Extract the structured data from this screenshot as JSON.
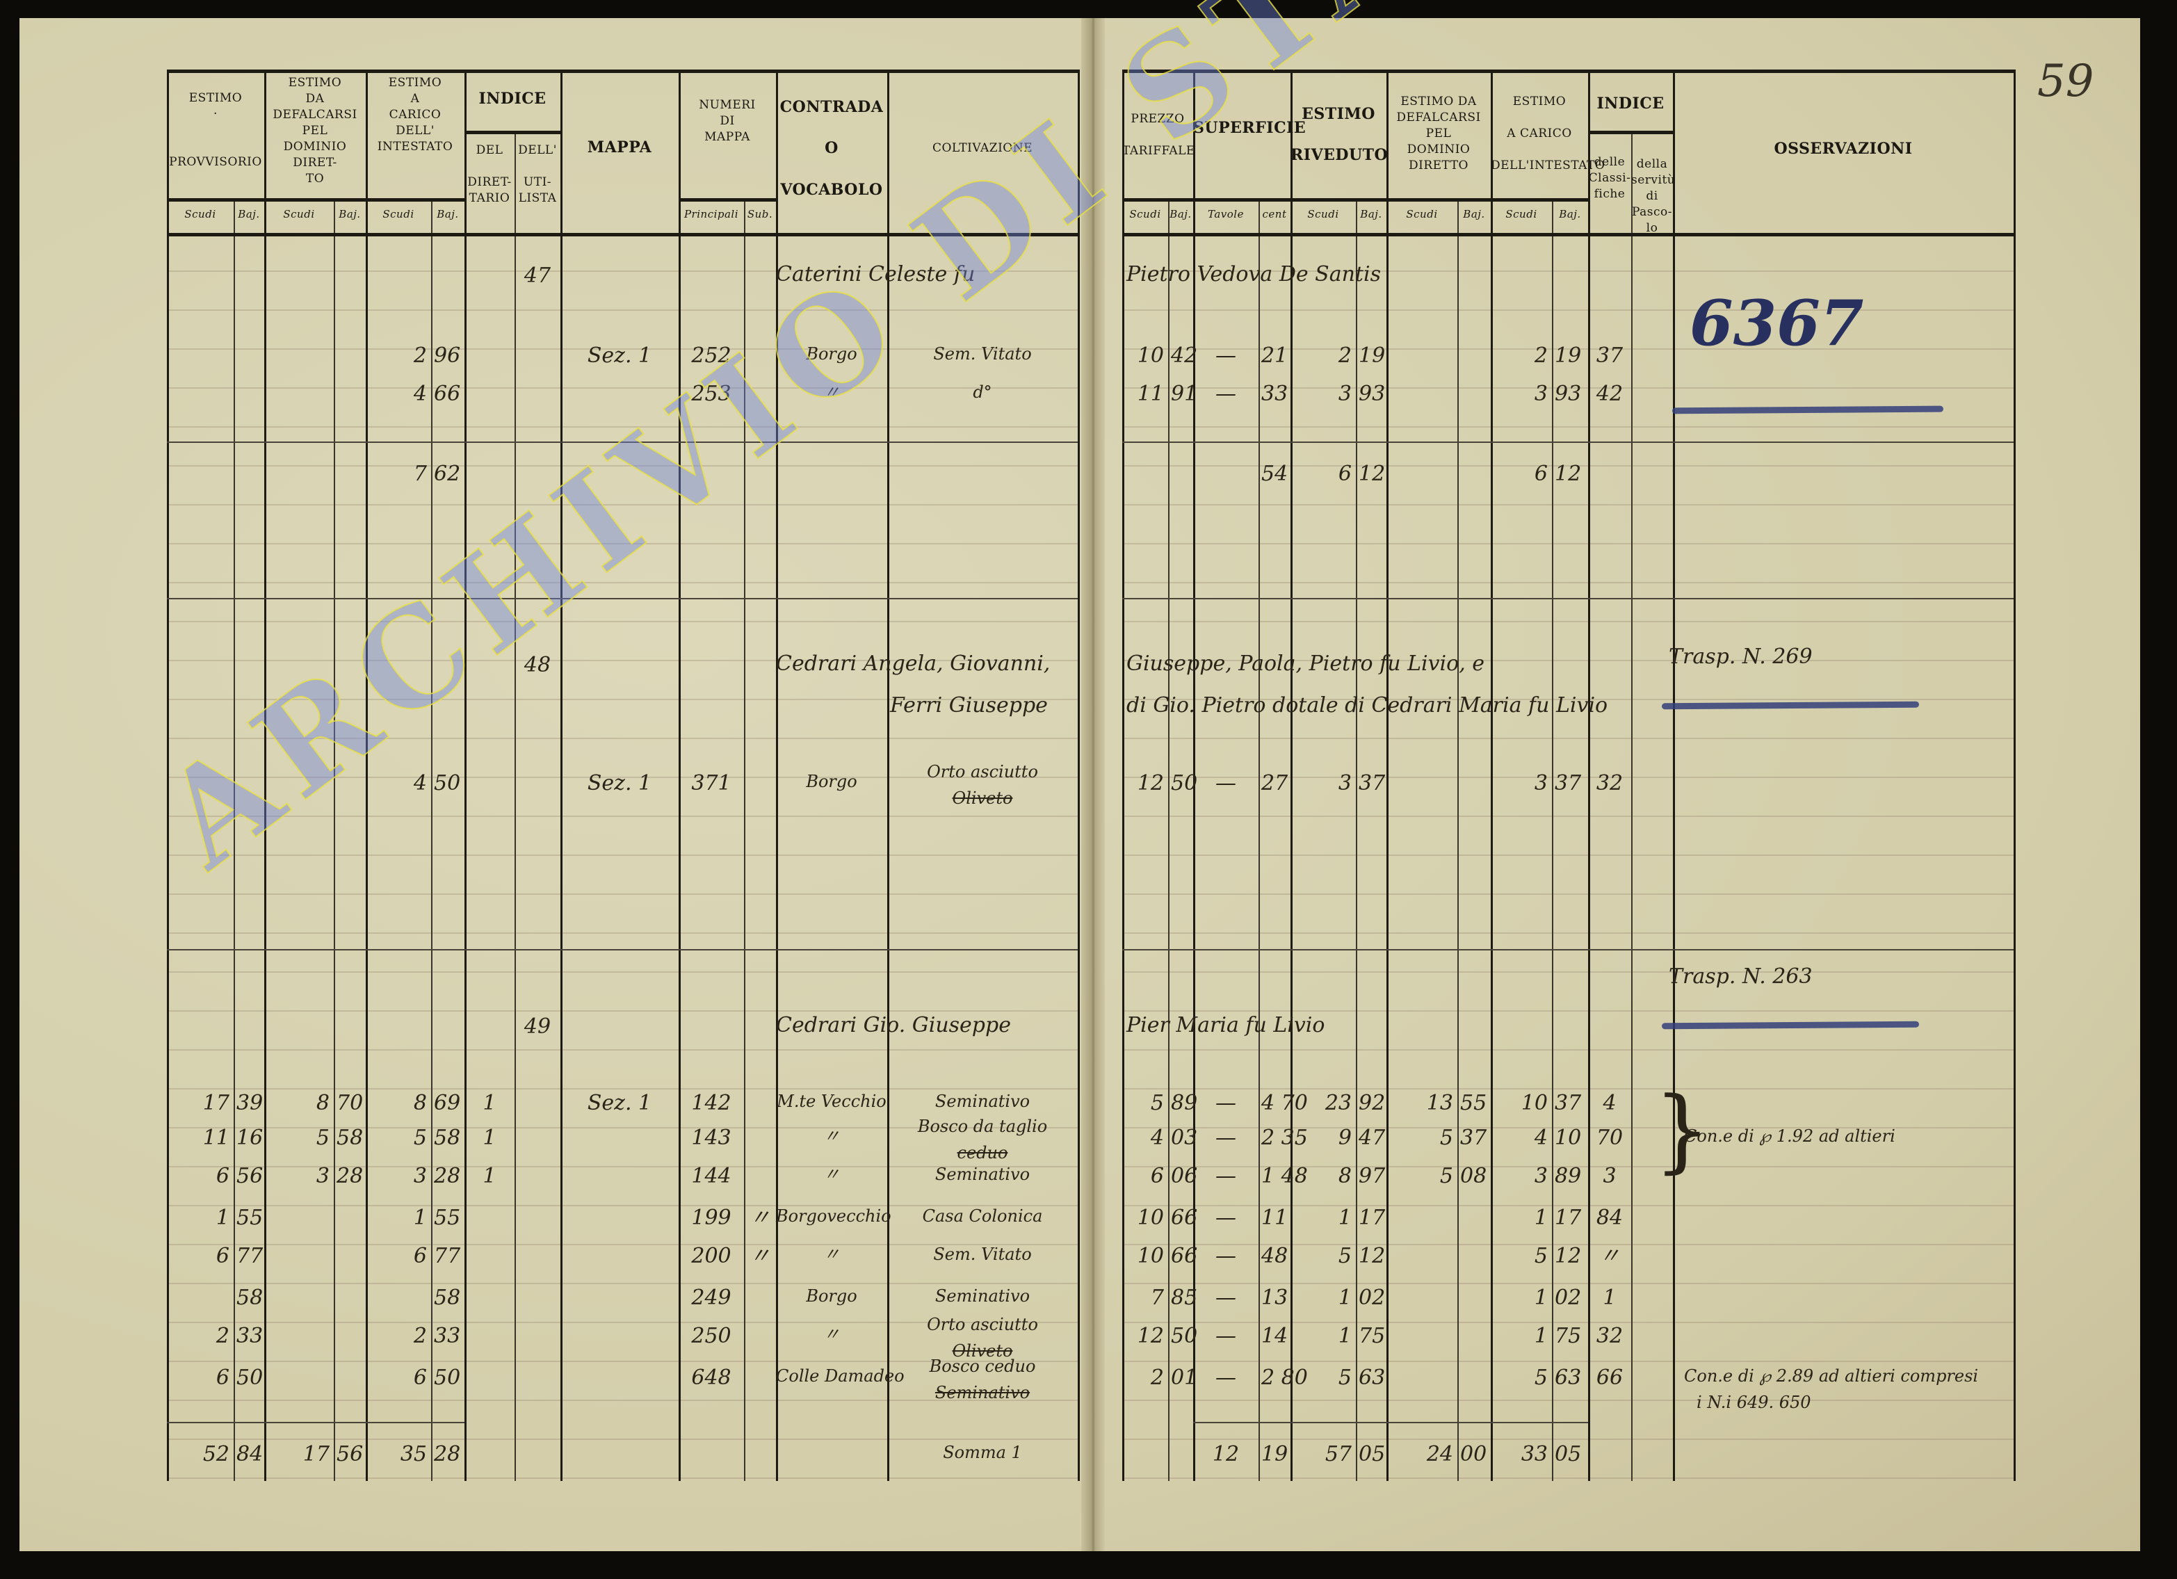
{
  "page_number": "59",
  "watermark": "ARCHIVIO DI STATO DI VITERBO",
  "headers": {
    "prov": "ESTIMO\n·\n\n\nPROVVISORIO",
    "def": "ESTIMO\nDA\nDEFALCARSI\nPEL\nDOMINIO DIRET-\nTO",
    "car": "ESTIMO\nA\nCARICO\nDELL'\nINTESTATO",
    "indice": "INDICE",
    "ind_del": "DEL\n\nDIRET-\nTARIO",
    "ind_util": "DELL'\n\nUTI-\nLISTA",
    "mappa": "MAPPA",
    "numeri": "NUMERI\nDI\nMAPPA",
    "contrada": "CONTRADA\n\nO\n\nVOCABOLO",
    "coltivazione": "COLTIVAZIONE",
    "prezzo": "PREZZO\n\nTARIFFALE",
    "superficie": "SUPERFICIE",
    "riveduto": "ESTIMO\n\nRIVEDUTO",
    "rdef": "ESTIMO DA\nDEFALCARSI\nPEL\nDOMINIO\nDIRETTO",
    "rcar": "ESTIMO\n\nA CARICO\n\nDELL'INTESTATO",
    "indice2": "INDICE",
    "classi": "delle\nClassi-\nfiche",
    "serv": "della\nservitù\ndi\nPasco-\nlo",
    "osservazioni": "OSSERVAZIONI",
    "scudi": "Scudi",
    "baj": "Baj.",
    "principali": "Principali",
    "sub": "Sub.",
    "tavole": "Tavole",
    "cent": "cent"
  },
  "groups": [
    {
      "index": "47",
      "owner_left": "Caterini Celeste fu",
      "owner_right": "Pietro Vedova De Santis",
      "note_blue": "6367",
      "rows": [
        {
          "car_s": "2",
          "car_b": "96",
          "mappa": "Sez. 1",
          "num_pr": "252",
          "contrada": "Borgo",
          "coltiv": "Sem. Vitato",
          "prezzo_s": "10",
          "prezzo_b": "42",
          "sup_t": "—",
          "sup_c": "21",
          "riv_s": "2",
          "riv_b": "19",
          "rcar_s": "2",
          "rcar_b": "19",
          "classi": "37"
        },
        {
          "car_s": "4",
          "car_b": "66",
          "num_pr": "253",
          "contrada": "〃",
          "coltiv": "d°",
          "prezzo_s": "11",
          "prezzo_b": "91",
          "sup_t": "—",
          "sup_c": "33",
          "riv_s": "3",
          "riv_b": "93",
          "rcar_s": "3",
          "rcar_b": "93",
          "classi": "42"
        }
      ],
      "subtotal": {
        "car_s": "7",
        "car_b": "62",
        "sup_c": "54",
        "riv_s": "6",
        "riv_b": "12",
        "rcar_s": "6",
        "rcar_b": "12"
      }
    },
    {
      "index": "48",
      "owner_left": "Cedrari Angela, Giovanni,",
      "owner_right": "Giuseppe, Paola, Pietro fu Livio, e",
      "owner_left2": "Ferri Giuseppe",
      "owner_right2": "di Gio. Pietro dotale di Cedrari Maria fu Livio",
      "note": "Trasp. N. 269",
      "rows": [
        {
          "car_s": "4",
          "car_b": "50",
          "mappa": "Sez. 1",
          "num_pr": "371",
          "contrada": "Borgo",
          "coltiv": "Orto asciutto",
          "coltiv_struck": "Oliveto",
          "prezzo_s": "12",
          "prezzo_b": "50",
          "sup_t": "—",
          "sup_c": "27",
          "riv_s": "3",
          "riv_b": "37",
          "rcar_s": "3",
          "rcar_b": "37",
          "classi": "32"
        }
      ]
    },
    {
      "index": "49",
      "owner_left": "Cedrari Gio. Giuseppe",
      "owner_right": "Pier Maria fu Livio",
      "note": "Trasp. N. 263",
      "rows": [
        {
          "prov_s": "17",
          "prov_b": "39",
          "def_s": "8",
          "def_b": "70",
          "car_s": "8",
          "car_b": "69",
          "ind_del": "1",
          "mappa": "Sez. 1",
          "num_pr": "142",
          "contrada": "M.te Vecchio",
          "coltiv": "Seminativo",
          "prezzo_s": "5",
          "prezzo_b": "89",
          "sup_t": "—",
          "sup_c": "4 70",
          "riv_s": "23",
          "riv_b": "92",
          "rdef_s": "13",
          "rdef_b": "55",
          "rcar_s": "10",
          "rcar_b": "37",
          "classi": "4"
        },
        {
          "prov_s": "11",
          "prov_b": "16",
          "def_s": "5",
          "def_b": "58",
          "car_s": "5",
          "car_b": "58",
          "ind_del": "1",
          "num_pr": "143",
          "contrada": "〃",
          "coltiv": "Bosco da taglio",
          "coltiv_struck": "ceduo",
          "prezzo_s": "4",
          "prezzo_b": "03",
          "sup_t": "—",
          "sup_c": "2 35",
          "riv_s": "9",
          "riv_b": "47",
          "rdef_s": "5",
          "rdef_b": "37",
          "rcar_s": "4",
          "rcar_b": "10",
          "classi": "70",
          "oss": "Con.e di ℘ 1.92 ad altieri"
        },
        {
          "prov_s": "6",
          "prov_b": "56",
          "def_s": "3",
          "def_b": "28",
          "car_s": "3",
          "car_b": "28",
          "ind_del": "1",
          "num_pr": "144",
          "contrada": "〃",
          "coltiv": "Seminativo",
          "prezzo_s": "6",
          "prezzo_b": "06",
          "sup_t": "—",
          "sup_c": "1 48",
          "riv_s": "8",
          "riv_b": "97",
          "rdef_s": "5",
          "rdef_b": "08",
          "rcar_s": "3",
          "rcar_b": "89",
          "classi": "3"
        },
        {
          "prov_s": "1",
          "prov_b": "55",
          "car_s": "1",
          "car_b": "55",
          "num_pr": "199",
          "num_sub": "〃",
          "contrada": "Borgovecchio",
          "coltiv": "Casa Colonica",
          "prezzo_s": "10",
          "prezzo_b": "66",
          "sup_t": "—",
          "sup_c": "11",
          "riv_s": "1",
          "riv_b": "17",
          "rcar_s": "1",
          "rcar_b": "17",
          "classi": "84"
        },
        {
          "prov_s": "6",
          "prov_b": "77",
          "car_s": "6",
          "car_b": "77",
          "num_pr": "200",
          "num_sub": "〃",
          "contrada": "〃",
          "coltiv": "Sem. Vitato",
          "prezzo_s": "10",
          "prezzo_b": "66",
          "sup_t": "—",
          "sup_c": "48",
          "riv_s": "5",
          "riv_b": "12",
          "rcar_s": "5",
          "rcar_b": "12",
          "classi": "〃"
        },
        {
          "prov_b": "58",
          "car_b": "58",
          "num_pr": "249",
          "contrada": "Borgo",
          "coltiv": "Seminativo",
          "prezzo_s": "7",
          "prezzo_b": "85",
          "sup_t": "—",
          "sup_c": "13",
          "riv_s": "1",
          "riv_b": "02",
          "rcar_s": "1",
          "rcar_b": "02",
          "classi": "1"
        },
        {
          "prov_s": "2",
          "prov_b": "33",
          "car_s": "2",
          "car_b": "33",
          "num_pr": "250",
          "contrada": "〃",
          "coltiv": "Orto asciutto",
          "coltiv_struck": "Oliveto",
          "prezzo_s": "12",
          "prezzo_b": "50",
          "sup_t": "—",
          "sup_c": "14",
          "riv_s": "1",
          "riv_b": "75",
          "rcar_s": "1",
          "rcar_b": "75",
          "classi": "32"
        },
        {
          "prov_s": "6",
          "prov_b": "50",
          "car_s": "6",
          "car_b": "50",
          "num_pr": "648",
          "contrada": "Colle Damadeo",
          "coltiv": "Bosco ceduo",
          "coltiv_struck": "Seminativo",
          "prezzo_s": "2",
          "prezzo_b": "01",
          "sup_t": "—",
          "sup_c": "2 80",
          "riv_s": "5",
          "riv_b": "63",
          "rcar_s": "5",
          "rcar_b": "63",
          "classi": "66",
          "oss": "Con.e di ℘ 2.89 ad altieri compresi",
          "oss2": "i N.i 649. 650"
        }
      ],
      "total": {
        "prov_s": "52",
        "prov_b": "84",
        "def_s": "17",
        "def_b": "56",
        "car_s": "35",
        "car_b": "28",
        "coltiv": "Somma 1",
        "sup_t": "12",
        "sup_c": "19",
        "riv_s": "57",
        "riv_b": "05",
        "rdef_s": "24",
        "rdef_b": "00",
        "rcar_s": "33",
        "rcar_b": "05"
      }
    }
  ]
}
